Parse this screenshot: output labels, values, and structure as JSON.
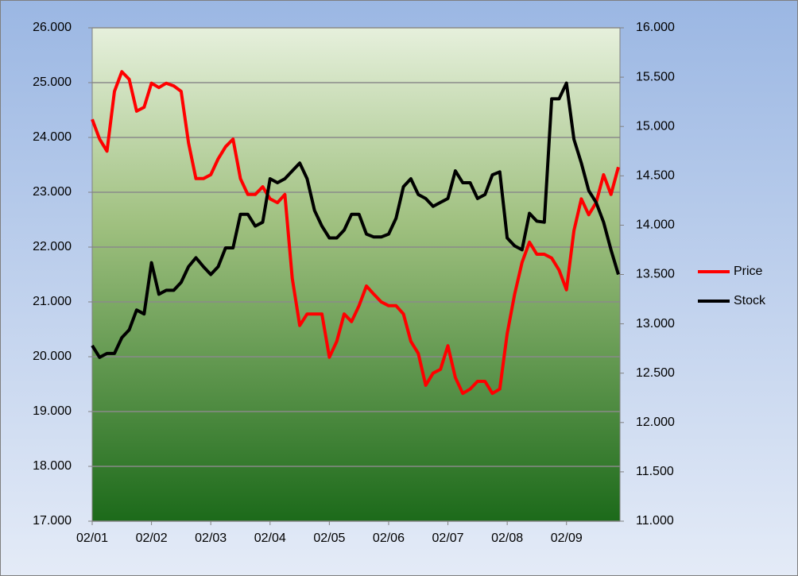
{
  "chart_data": {
    "type": "line",
    "categories": [
      "02/01",
      null,
      null,
      null,
      null,
      null,
      null,
      null,
      "02/02",
      null,
      null,
      null,
      null,
      null,
      null,
      null,
      "02/03",
      null,
      null,
      null,
      null,
      null,
      null,
      null,
      "02/04",
      null,
      null,
      null,
      null,
      null,
      null,
      null,
      "02/05",
      null,
      null,
      null,
      null,
      null,
      null,
      null,
      "02/06",
      null,
      null,
      null,
      null,
      null,
      null,
      null,
      "02/07",
      null,
      null,
      null,
      null,
      null,
      null,
      null,
      "02/08",
      null,
      null,
      null,
      null,
      null,
      null,
      null,
      "02/09",
      null,
      null,
      null,
      null,
      null,
      null,
      null
    ],
    "series": [
      {
        "name": "Price",
        "color": "#ff0000",
        "values": [
          24.33,
          23.97,
          23.75,
          24.84,
          25.2,
          25.06,
          24.48,
          24.55,
          24.99,
          24.91,
          24.99,
          24.94,
          24.84,
          23.9,
          23.25,
          23.25,
          23.32,
          23.61,
          23.83,
          23.97,
          23.25,
          22.96,
          22.96,
          23.1,
          22.88,
          22.81,
          22.96,
          21.43,
          20.57,
          20.78,
          20.78,
          20.78,
          19.99,
          20.28,
          20.78,
          20.64,
          20.93,
          21.29,
          21.14,
          21.0,
          20.93,
          20.93,
          20.78,
          20.28,
          20.06,
          19.48,
          19.7,
          19.77,
          20.2,
          19.62,
          19.33,
          19.41,
          19.55,
          19.55,
          19.33,
          19.41,
          20.42,
          21.14,
          21.72,
          22.09,
          21.87,
          21.87,
          21.8,
          21.58,
          21.22,
          22.3,
          22.88,
          22.59,
          22.81,
          23.32,
          22.96,
          23.46
        ]
      },
      {
        "name": "Stock",
        "color": "#000000",
        "axis": "y2",
        "values": [
          12.78,
          12.66,
          12.7,
          12.7,
          12.86,
          12.94,
          13.14,
          13.1,
          13.62,
          13.3,
          13.34,
          13.34,
          13.42,
          13.58,
          13.67,
          13.58,
          13.5,
          13.58,
          13.77,
          13.77,
          14.11,
          14.11,
          13.99,
          14.03,
          14.47,
          14.43,
          14.47,
          14.55,
          14.63,
          14.47,
          14.15,
          13.99,
          13.87,
          13.87,
          13.95,
          14.11,
          14.11,
          13.91,
          13.88,
          13.88,
          13.91,
          14.07,
          14.39,
          14.47,
          14.31,
          14.27,
          14.19,
          14.23,
          14.27,
          14.55,
          14.43,
          14.43,
          14.27,
          14.31,
          14.51,
          14.54,
          13.87,
          13.79,
          13.75,
          14.12,
          14.04,
          14.03,
          15.28,
          15.28,
          15.44,
          14.87,
          14.63,
          14.35,
          14.23,
          14.03,
          13.75,
          13.5
        ]
      }
    ],
    "ylim": [
      17,
      26
    ],
    "yticks": [
      {
        "value": 17,
        "label": "17.000"
      },
      {
        "value": 18,
        "label": "18.000"
      },
      {
        "value": 19,
        "label": "19.000"
      },
      {
        "value": 20,
        "label": "20.000"
      },
      {
        "value": 21,
        "label": "21.000"
      },
      {
        "value": 22,
        "label": "22.000"
      },
      {
        "value": 23,
        "label": "23.000"
      },
      {
        "value": 24,
        "label": "24.000"
      },
      {
        "value": 25,
        "label": "25.000"
      },
      {
        "value": 26,
        "label": "26.000"
      }
    ],
    "y2lim": [
      11,
      16
    ],
    "y2ticks": [
      {
        "value": 11,
        "label": "11.000"
      },
      {
        "value": 11.5,
        "label": "11.500"
      },
      {
        "value": 12,
        "label": "12.000"
      },
      {
        "value": 12.5,
        "label": "12.500"
      },
      {
        "value": 13,
        "label": "13.000"
      },
      {
        "value": 13.5,
        "label": "13.500"
      },
      {
        "value": 14,
        "label": "14.000"
      },
      {
        "value": 14.5,
        "label": "14.500"
      },
      {
        "value": 15,
        "label": "15.000"
      },
      {
        "value": 15.5,
        "label": "15.500"
      },
      {
        "value": 16,
        "label": "16.000"
      }
    ],
    "grid": true,
    "legend": "right"
  }
}
